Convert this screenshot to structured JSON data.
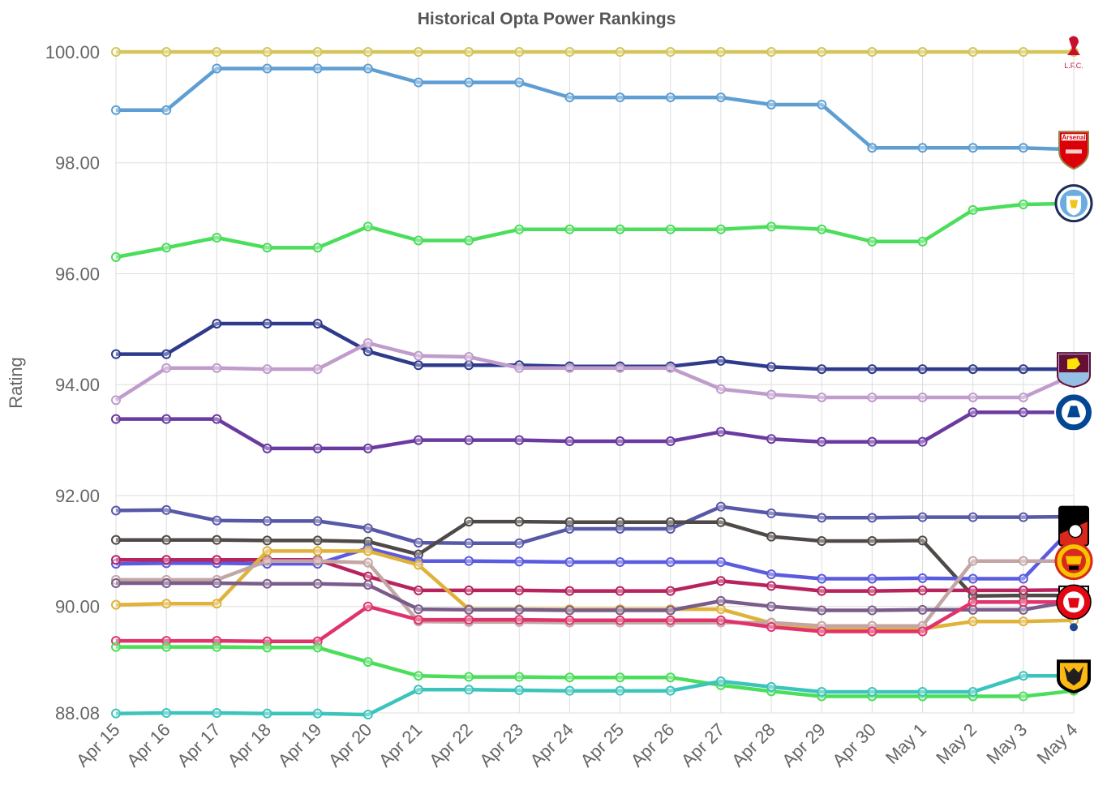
{
  "chart_data": {
    "type": "line",
    "title": "Historical Opta Power Rankings",
    "ylabel": "Rating",
    "xlabel": "",
    "ylim": [
      88.08,
      100.0
    ],
    "y_ticks": [
      "100.00",
      "98.00",
      "96.00",
      "94.00",
      "92.00",
      "90.00",
      "88.08"
    ],
    "y_tick_values": [
      100.0,
      98.0,
      96.0,
      94.0,
      92.0,
      90.0,
      88.08
    ],
    "categories": [
      "Apr 15",
      "Apr 16",
      "Apr 17",
      "Apr 18",
      "Apr 19",
      "Apr 20",
      "Apr 21",
      "Apr 22",
      "Apr 23",
      "Apr 24",
      "Apr 25",
      "Apr 26",
      "Apr 27",
      "Apr 28",
      "Apr 29",
      "Apr 30",
      "May 1",
      "May 2",
      "May 3",
      "May 4"
    ],
    "grid": true,
    "legend": "team crests at right end of each line",
    "series": [
      {
        "color": "#d4c55a",
        "badge": "liverpool-crest-icon",
        "badge_text": "L.F.C.",
        "values": [
          100,
          100,
          100,
          100,
          100,
          100,
          100,
          100,
          100,
          100,
          100,
          100,
          100,
          100,
          100,
          100,
          100,
          100,
          100,
          100
        ]
      },
      {
        "color": "#5e9ed3",
        "badge": "arsenal-crest-icon",
        "badge_text": "Arsenal",
        "values": [
          98.95,
          98.95,
          99.7,
          99.7,
          99.7,
          99.7,
          99.45,
          99.45,
          99.45,
          99.18,
          99.18,
          99.18,
          99.18,
          99.05,
          99.05,
          98.27,
          98.27,
          98.27,
          98.27,
          98.24
        ]
      },
      {
        "color": "#4ade5a",
        "badge": "man-city-crest-icon",
        "badge_text": "",
        "values": [
          96.3,
          96.47,
          96.65,
          96.47,
          96.47,
          96.85,
          96.6,
          96.6,
          96.8,
          96.8,
          96.8,
          96.8,
          96.8,
          96.85,
          96.8,
          96.58,
          96.58,
          97.15,
          97.25,
          97.27
        ]
      },
      {
        "color": "#2e3a8c",
        "badge": "aston-villa-crest-icon",
        "badge_text": "",
        "values": [
          94.55,
          94.55,
          95.1,
          95.1,
          95.1,
          94.6,
          94.35,
          94.35,
          94.35,
          94.33,
          94.33,
          94.33,
          94.43,
          94.32,
          94.28,
          94.28,
          94.28,
          94.28,
          94.28,
          94.28
        ]
      },
      {
        "color": "#bf9ccc",
        "badge": "",
        "badge_text": "",
        "values": [
          93.72,
          94.3,
          94.3,
          94.28,
          94.28,
          94.75,
          94.52,
          94.5,
          94.3,
          94.3,
          94.3,
          94.3,
          93.92,
          93.82,
          93.77,
          93.77,
          93.77,
          93.77,
          93.77,
          94.18
        ]
      },
      {
        "color": "#6a3aa0",
        "badge": "chelsea-crest-icon",
        "badge_text": "",
        "values": [
          93.38,
          93.38,
          93.38,
          92.85,
          92.85,
          92.85,
          93.0,
          93.0,
          93.0,
          92.98,
          92.98,
          92.98,
          93.15,
          93.02,
          92.97,
          92.97,
          92.97,
          93.5,
          93.5,
          93.5
        ]
      },
      {
        "color": "#5858a8",
        "badge": "",
        "badge_text": "",
        "values": [
          91.73,
          91.74,
          91.55,
          91.54,
          91.54,
          91.41,
          91.15,
          91.14,
          91.14,
          91.4,
          91.4,
          91.4,
          91.8,
          91.68,
          91.6,
          91.6,
          91.61,
          91.61,
          91.61,
          91.62
        ]
      },
      {
        "color": "#4f4a48",
        "badge": "",
        "badge_text": "",
        "values": [
          91.2,
          91.2,
          91.2,
          91.19,
          91.19,
          91.17,
          90.94,
          91.53,
          91.53,
          91.52,
          91.52,
          91.52,
          91.52,
          91.26,
          91.18,
          91.18,
          91.19,
          90.19,
          90.2,
          90.2
        ]
      },
      {
        "color": "#5b5be0",
        "badge": "bournemouth-crest-icon",
        "badge_text": "",
        "values": [
          90.77,
          90.78,
          90.78,
          90.77,
          90.77,
          91.05,
          90.82,
          90.82,
          90.81,
          90.8,
          90.8,
          90.8,
          90.8,
          90.58,
          90.5,
          90.5,
          90.51,
          90.5,
          90.5,
          91.45
        ]
      },
      {
        "color": "#b8235e",
        "badge": "",
        "badge_text": "",
        "values": [
          90.84,
          90.84,
          90.84,
          90.84,
          90.84,
          90.54,
          90.29,
          90.29,
          90.29,
          90.28,
          90.28,
          90.28,
          90.46,
          90.37,
          90.28,
          90.28,
          90.29,
          90.29,
          90.29,
          90.3
        ]
      },
      {
        "color": "#e0b23a",
        "badge": "",
        "badge_text": "",
        "values": [
          90.03,
          90.05,
          90.05,
          91.0,
          91.0,
          91.0,
          90.75,
          89.95,
          89.95,
          89.95,
          89.95,
          89.95,
          89.95,
          89.7,
          89.6,
          89.6,
          89.6,
          89.73,
          89.73,
          89.75
        ]
      },
      {
        "color": "#c3a6a4",
        "badge": "man-utd-crest-icon",
        "badge_text": "",
        "values": [
          90.48,
          90.48,
          90.48,
          90.82,
          90.82,
          90.79,
          89.73,
          89.72,
          89.72,
          89.71,
          89.71,
          89.71,
          89.71,
          89.71,
          89.65,
          89.65,
          89.65,
          90.82,
          90.82,
          90.82
        ]
      },
      {
        "color": "#7a5c8a",
        "badge": "fulham-crest-icon",
        "badge_text": "",
        "values": [
          90.42,
          90.42,
          90.42,
          90.41,
          90.41,
          90.39,
          89.95,
          89.94,
          89.94,
          89.93,
          89.93,
          89.93,
          90.1,
          90.0,
          89.93,
          89.93,
          89.94,
          89.94,
          89.94,
          90.1
        ]
      },
      {
        "color": "#e0336c",
        "badge": "brentford-crest-icon",
        "badge_text": "",
        "values": [
          89.38,
          89.38,
          89.38,
          89.37,
          89.37,
          90.0,
          89.76,
          89.76,
          89.76,
          89.75,
          89.75,
          89.75,
          89.75,
          89.63,
          89.55,
          89.55,
          89.55,
          90.08,
          90.08,
          90.08
        ]
      },
      {
        "color": "#4ade5a",
        "badge": "",
        "badge_text": "",
        "values": [
          89.27,
          89.27,
          89.27,
          89.26,
          89.26,
          89.0,
          88.75,
          88.73,
          88.73,
          88.72,
          88.72,
          88.72,
          88.58,
          88.47,
          88.38,
          88.38,
          88.38,
          88.38,
          88.38,
          88.48
        ]
      },
      {
        "color": "#3cc4bc",
        "badge": "wolves-crest-icon",
        "badge_text": "",
        "values": [
          88.07,
          88.08,
          88.08,
          88.07,
          88.07,
          88.05,
          88.5,
          88.5,
          88.49,
          88.48,
          88.48,
          88.48,
          88.65,
          88.55,
          88.46,
          88.46,
          88.46,
          88.46,
          88.75,
          88.75
        ]
      }
    ]
  },
  "colors": {
    "title": "#555555",
    "axis_text": "#666666",
    "grid": "#dddddd",
    "marker_fill": "#ffffff"
  }
}
